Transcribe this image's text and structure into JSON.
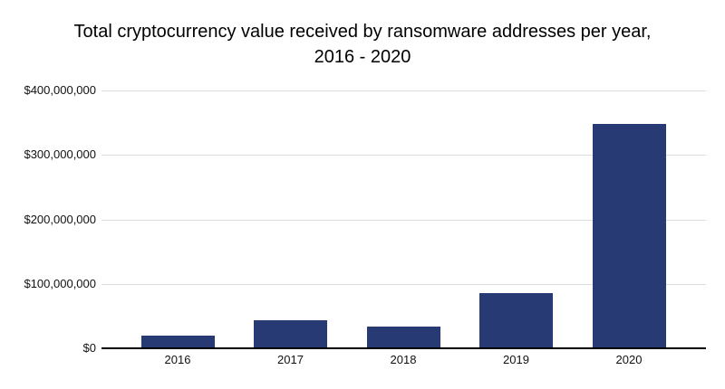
{
  "title": {
    "line1": "Total cryptocurrency value received by ransomware addresses per year,",
    "line2": "2016 - 2020"
  },
  "chart_data": {
    "type": "bar",
    "title": "Total cryptocurrency value received by ransomware addresses per year, 2016 - 2020",
    "categories": [
      "2016",
      "2017",
      "2018",
      "2019",
      "2020"
    ],
    "values": [
      20000000,
      44000000,
      34000000,
      85000000,
      348000000
    ],
    "xlabel": "",
    "ylabel": "",
    "ylim": [
      0,
      400000000
    ],
    "y_ticks": [
      {
        "value": 400000000,
        "label": "$400,000,000"
      },
      {
        "value": 300000000,
        "label": "$300,000,000"
      },
      {
        "value": 200000000,
        "label": "$200,000,000"
      },
      {
        "value": 100000000,
        "label": "$100,000,000"
      },
      {
        "value": 0,
        "label": "$0"
      }
    ],
    "grid": true,
    "legend": "none",
    "colors": {
      "bar": "#283a73",
      "gridline": "#dcdcdc",
      "axis_line": "#000000",
      "text": "#111111",
      "title_text": "#000000",
      "background": "#ffffff"
    }
  }
}
